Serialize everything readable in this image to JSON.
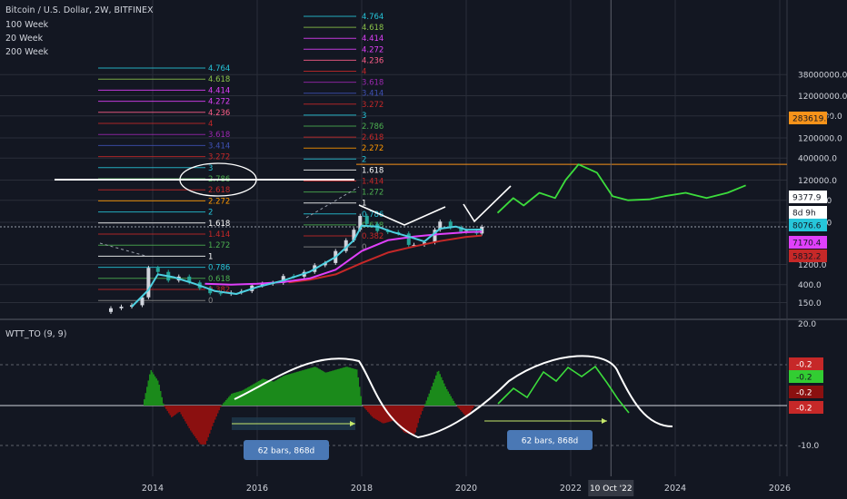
{
  "header": {
    "title": "Bitcoin / U.S. Dollar, 2W, BITFINEX",
    "ma_labels": [
      "100 Week",
      "20 Week",
      "200 Week"
    ],
    "osc_label": "WTT_TO (9, 9)"
  },
  "colors": {
    "bg": "#131722",
    "grid": "#2a2e39",
    "text": "#d1d4dc",
    "ma20": "#4dd0e1",
    "ma100": "#e040fb",
    "ma200": "#c62828",
    "projection": "#3cdc3c",
    "osc_pos": "#1b8a1b",
    "osc_neg": "#8b1010",
    "accent_orange": "#f7931a"
  },
  "chart_data": [
    {
      "type": "line",
      "title": "Bitcoin / U.S. Dollar, 2W, BITFINEX",
      "y_scale": "log",
      "y_ticks": [
        "38000000.0",
        "12000000.0",
        "4000000.0",
        "1200000.0",
        "400000.0",
        "120000.0",
        "40000.0",
        "12000.0",
        "1200.0",
        "400.0",
        "150.0"
      ],
      "x_ticks": [
        "2014",
        "2016",
        "2018",
        "2020",
        "2022",
        "2024",
        "2026"
      ],
      "price_tags": [
        {
          "label": "283619.0",
          "color": "#f7931a"
        },
        {
          "label": "9377.9",
          "color": "#ffffff"
        },
        {
          "label": "8d 9h",
          "color": "#ffffff"
        },
        {
          "label": "8076.6",
          "color": "#26c6da"
        },
        {
          "label": "7170.4",
          "color": "#e040fb"
        },
        {
          "label": "5832.2",
          "color": "#c62828"
        }
      ],
      "crosshair_date": "10 Oct '22",
      "fib_levels_2013": [
        {
          "label": "4.764",
          "color": "#26c6da"
        },
        {
          "label": "4.618",
          "color": "#8bc34a"
        },
        {
          "label": "4.414",
          "color": "#e040fb"
        },
        {
          "label": "4.272",
          "color": "#e040fb"
        },
        {
          "label": "4.236",
          "color": "#ff5f8a"
        },
        {
          "label": "4",
          "color": "#c62828"
        },
        {
          "label": "3.618",
          "color": "#9c27b0"
        },
        {
          "label": "3.414",
          "color": "#3f51b5"
        },
        {
          "label": "3.272",
          "color": "#c62828"
        },
        {
          "label": "3",
          "color": "#26c6da"
        },
        {
          "label": "2.786",
          "color": "#4caf50"
        },
        {
          "label": "2.618",
          "color": "#c62828"
        },
        {
          "label": "2.272",
          "color": "#ff9800"
        },
        {
          "label": "2",
          "color": "#26c6da"
        },
        {
          "label": "1.618",
          "color": "#ffffff"
        },
        {
          "label": "1.414",
          "color": "#c62828"
        },
        {
          "label": "1.272",
          "color": "#4caf50"
        },
        {
          "label": "1",
          "color": "#ffffff"
        },
        {
          "label": "0.786",
          "color": "#26c6da"
        },
        {
          "label": "0.618",
          "color": "#4caf50"
        },
        {
          "label": "0.382",
          "color": "#c62828"
        },
        {
          "label": "0",
          "color": "#888888"
        }
      ],
      "fib_levels_2017": [
        {
          "label": "4.764",
          "color": "#26c6da"
        },
        {
          "label": "4.618",
          "color": "#8bc34a"
        },
        {
          "label": "4.414",
          "color": "#e040fb"
        },
        {
          "label": "4.272",
          "color": "#e040fb"
        },
        {
          "label": "4.236",
          "color": "#ff5f8a"
        },
        {
          "label": "4",
          "color": "#c62828"
        },
        {
          "label": "3.618",
          "color": "#9c27b0"
        },
        {
          "label": "3.414",
          "color": "#3f51b5"
        },
        {
          "label": "3.272",
          "color": "#c62828"
        },
        {
          "label": "3",
          "color": "#26c6da"
        },
        {
          "label": "2.786",
          "color": "#4caf50"
        },
        {
          "label": "2.618",
          "color": "#c62828"
        },
        {
          "label": "2.272",
          "color": "#ff9800"
        },
        {
          "label": "2",
          "color": "#26c6da"
        },
        {
          "label": "1.618",
          "color": "#ffffff"
        },
        {
          "label": "1.414",
          "color": "#c62828"
        },
        {
          "label": "1.272",
          "color": "#4caf50"
        },
        {
          "label": "1",
          "color": "#ffffff"
        },
        {
          "label": "0.786",
          "color": "#26c6da"
        },
        {
          "label": "0.618",
          "color": "#4caf50"
        },
        {
          "label": "0.382",
          "color": "#c62828"
        },
        {
          "label": "0",
          "color": "#888888"
        }
      ],
      "price": {
        "x": [
          2013.0,
          2013.2,
          2013.4,
          2013.6,
          2013.8,
          2013.92,
          2014.1,
          2014.3,
          2014.5,
          2014.7,
          2014.9,
          2015.1,
          2015.3,
          2015.5,
          2015.7,
          2015.9,
          2016.1,
          2016.3,
          2016.5,
          2016.7,
          2016.9,
          2017.1,
          2017.3,
          2017.5,
          2017.7,
          2017.85,
          2017.97,
          2018.1,
          2018.3,
          2018.5,
          2018.7,
          2018.9,
          2019.0,
          2019.2,
          2019.4,
          2019.5,
          2019.7,
          2019.9,
          2020.0,
          2020.2,
          2020.3
        ],
        "y": [
          90,
          110,
          120,
          130,
          200,
          1000,
          800,
          500,
          620,
          450,
          330,
          250,
          240,
          260,
          280,
          380,
          420,
          440,
          640,
          620,
          800,
          1150,
          1300,
          2500,
          4500,
          8000,
          17000,
          11000,
          7500,
          7000,
          6500,
          3500,
          3500,
          4000,
          8000,
          12500,
          9000,
          7200,
          7500,
          6500,
          9377
        ]
      },
      "ma_20_week": {
        "x": [
          2013.6,
          2013.92,
          2014.1,
          2014.4,
          2014.8,
          2015.2,
          2015.6,
          2016.0,
          2016.5,
          2017.0,
          2017.5,
          2017.85,
          2018.0,
          2018.3,
          2018.6,
          2018.9,
          2019.2,
          2019.5,
          2019.8,
          2020.0,
          2020.3
        ],
        "y": [
          120,
          300,
          700,
          600,
          420,
          280,
          240,
          350,
          500,
          800,
          1800,
          4500,
          10000,
          9500,
          7000,
          5500,
          4200,
          8500,
          9500,
          8000,
          8076
        ]
      },
      "ma_100_week": {
        "x": [
          2015.0,
          2015.5,
          2016.0,
          2016.5,
          2017.0,
          2017.5,
          2018.0,
          2018.5,
          2019.0,
          2019.5,
          2020.0,
          2020.3
        ],
        "y": [
          420,
          400,
          420,
          460,
          560,
          900,
          2500,
          4500,
          5500,
          6300,
          7000,
          7170
        ]
      },
      "ma_200_week": {
        "x": [
          2016.6,
          2017.0,
          2017.5,
          2018.0,
          2018.5,
          2019.0,
          2019.5,
          2020.0,
          2020.3
        ],
        "y": [
          450,
          520,
          700,
          1300,
          2300,
          3200,
          4300,
          5400,
          5832
        ]
      },
      "projection": {
        "x": [
          2020.6,
          2020.9,
          2021.1,
          2021.4,
          2021.7,
          2021.9,
          2022.15,
          2022.5,
          2022.8,
          2023.1,
          2023.5,
          2023.8,
          2024.2,
          2024.6,
          2025.0,
          2025.35
        ],
        "y": [
          20000,
          45000,
          30000,
          60000,
          45000,
          120000,
          283619,
          180000,
          50000,
          40000,
          42000,
          50000,
          60000,
          45000,
          60000,
          90000
        ]
      }
    },
    {
      "type": "area",
      "title": "WTT_TO (9, 9)",
      "y_ticks": [
        "20.0",
        "-10.0"
      ],
      "value_tags": [
        {
          "label": "-0.2",
          "color": "#c62828"
        },
        {
          "label": "-0.2",
          "color": "#32cd32"
        },
        {
          "label": "-0.2",
          "color": "#8b1010"
        },
        {
          "label": "-0.2",
          "color": "#c62828"
        }
      ],
      "x": [
        2013.8,
        2013.95,
        2014.1,
        2014.2,
        2014.35,
        2014.5,
        2014.7,
        2014.9,
        2015.0,
        2015.15,
        2015.3,
        2015.5,
        2015.7,
        2015.9,
        2016.1,
        2016.3,
        2016.5,
        2016.7,
        2016.9,
        2017.1,
        2017.3,
        2017.5,
        2017.7,
        2017.9,
        2018.0,
        2018.2,
        2018.4,
        2018.6,
        2018.8,
        2019.0,
        2019.1,
        2019.3,
        2019.45,
        2019.6,
        2019.8,
        2020.0,
        2020.15
      ],
      "y": [
        0,
        12,
        8,
        0,
        -4,
        -2,
        -8,
        -13,
        -13,
        -6,
        0,
        4,
        5,
        7,
        9,
        8,
        10,
        11,
        12,
        13,
        11,
        12,
        13,
        12,
        0,
        -4,
        -6,
        -5,
        -9,
        -10,
        -4,
        5,
        12,
        6,
        0,
        -4,
        0
      ],
      "annotations": [
        "62 bars, 868d",
        "62 bars, 868d"
      ]
    }
  ]
}
